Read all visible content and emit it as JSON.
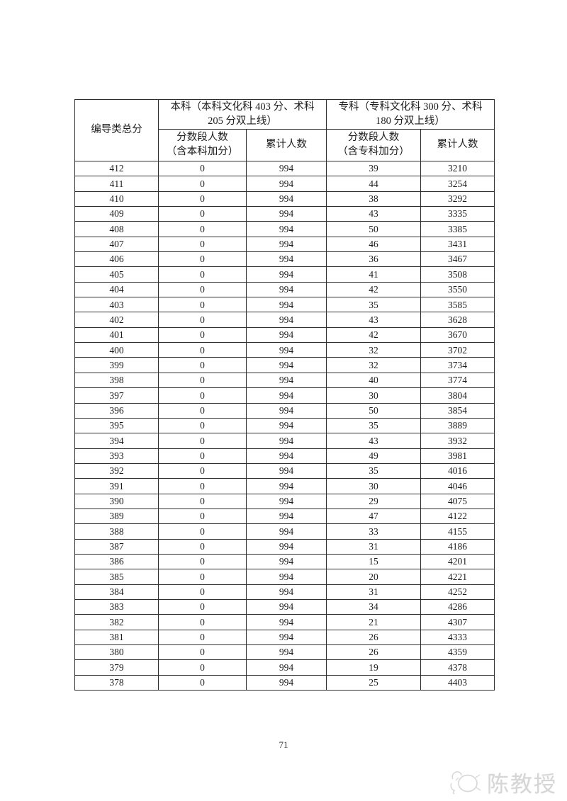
{
  "page": {
    "number": "71"
  },
  "table": {
    "corner_header": "编导类总分",
    "groups": [
      {
        "title": "本科（本科文化科 403 分、术科\n205 分双上线）",
        "sub_headers": [
          "分数段人数\n（含本科加分）",
          "累计人数"
        ]
      },
      {
        "title": "专科（专科文化科 300 分、术科\n180 分双上线）",
        "sub_headers": [
          "分数段人数\n（含专科加分）",
          "累计人数"
        ]
      }
    ],
    "rows": [
      [
        412,
        0,
        994,
        39,
        3210
      ],
      [
        411,
        0,
        994,
        44,
        3254
      ],
      [
        410,
        0,
        994,
        38,
        3292
      ],
      [
        409,
        0,
        994,
        43,
        3335
      ],
      [
        408,
        0,
        994,
        50,
        3385
      ],
      [
        407,
        0,
        994,
        46,
        3431
      ],
      [
        406,
        0,
        994,
        36,
        3467
      ],
      [
        405,
        0,
        994,
        41,
        3508
      ],
      [
        404,
        0,
        994,
        42,
        3550
      ],
      [
        403,
        0,
        994,
        35,
        3585
      ],
      [
        402,
        0,
        994,
        43,
        3628
      ],
      [
        401,
        0,
        994,
        42,
        3670
      ],
      [
        400,
        0,
        994,
        32,
        3702
      ],
      [
        399,
        0,
        994,
        32,
        3734
      ],
      [
        398,
        0,
        994,
        40,
        3774
      ],
      [
        397,
        0,
        994,
        30,
        3804
      ],
      [
        396,
        0,
        994,
        50,
        3854
      ],
      [
        395,
        0,
        994,
        35,
        3889
      ],
      [
        394,
        0,
        994,
        43,
        3932
      ],
      [
        393,
        0,
        994,
        49,
        3981
      ],
      [
        392,
        0,
        994,
        35,
        4016
      ],
      [
        391,
        0,
        994,
        30,
        4046
      ],
      [
        390,
        0,
        994,
        29,
        4075
      ],
      [
        389,
        0,
        994,
        47,
        4122
      ],
      [
        388,
        0,
        994,
        33,
        4155
      ],
      [
        387,
        0,
        994,
        31,
        4186
      ],
      [
        386,
        0,
        994,
        15,
        4201
      ],
      [
        385,
        0,
        994,
        20,
        4221
      ],
      [
        384,
        0,
        994,
        31,
        4252
      ],
      [
        383,
        0,
        994,
        34,
        4286
      ],
      [
        382,
        0,
        994,
        21,
        4307
      ],
      [
        381,
        0,
        994,
        26,
        4333
      ],
      [
        380,
        0,
        994,
        26,
        4359
      ],
      [
        379,
        0,
        994,
        19,
        4378
      ],
      [
        378,
        0,
        994,
        25,
        4403
      ]
    ]
  },
  "watermark": {
    "text": "陈教授"
  }
}
